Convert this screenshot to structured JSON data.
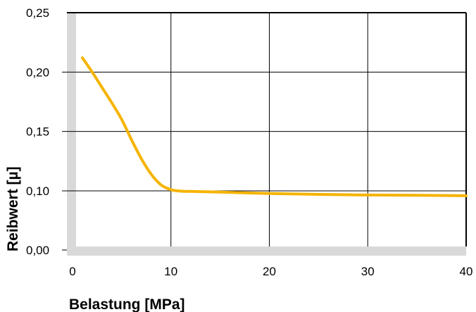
{
  "chart_data": {
    "type": "line",
    "xlabel": "Belastung [MPa]",
    "ylabel": "Reibwert [µ]",
    "xlim": [
      0,
      40
    ],
    "ylim": [
      0,
      0.25
    ],
    "y_axis_break": {
      "from": 0.0,
      "to": 0.1,
      "note": "axis break between 0,00 and 0,10"
    },
    "x_ticks": [
      {
        "value": 0,
        "label": "0"
      },
      {
        "value": 10,
        "label": "10"
      },
      {
        "value": 20,
        "label": "20"
      },
      {
        "value": 30,
        "label": "30"
      },
      {
        "value": 40,
        "label": "40"
      }
    ],
    "y_ticks": [
      {
        "value": 0.0,
        "label": "0,00"
      },
      {
        "value": 0.1,
        "label": "0,10"
      },
      {
        "value": 0.15,
        "label": "0,15"
      },
      {
        "value": 0.2,
        "label": "0,20"
      },
      {
        "value": 0.25,
        "label": "0,25"
      }
    ],
    "grid": true,
    "colors": {
      "curve": "#F5B400",
      "axis_band": "#D9D9D9",
      "grid": "#000000"
    },
    "series": [
      {
        "x": [
          1,
          2,
          3,
          4,
          5,
          6,
          7,
          8,
          9,
          10,
          11,
          12,
          15,
          20,
          25,
          30,
          35,
          40
        ],
        "y": [
          0.212,
          0.2,
          0.187,
          0.174,
          0.16,
          0.143,
          0.127,
          0.114,
          0.105,
          0.101,
          0.0995,
          0.099,
          0.098,
          0.0955,
          0.094,
          0.093,
          0.0925,
          0.0918
        ]
      }
    ]
  }
}
